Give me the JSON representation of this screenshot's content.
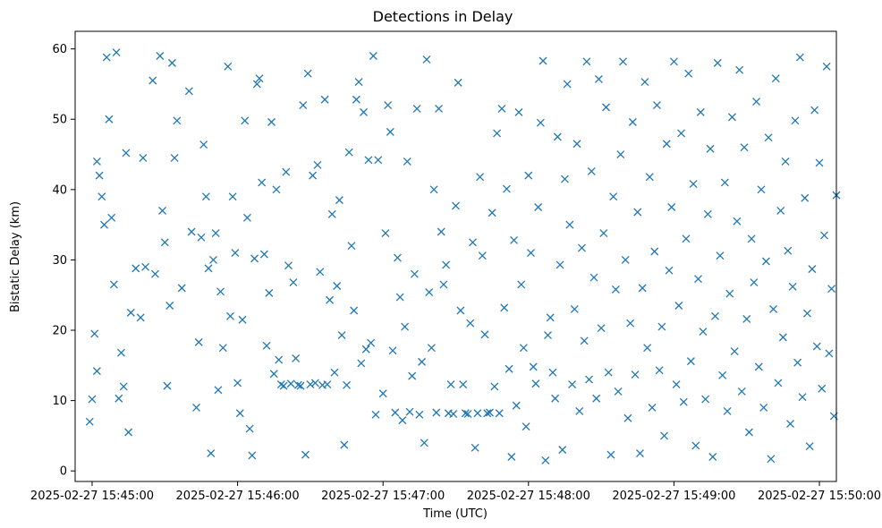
{
  "chart_data": {
    "type": "scatter",
    "title": "Detections in Delay",
    "xlabel": "Time (UTC)",
    "ylabel": "Bistatic Delay (km)",
    "xlim": [
      "2025-02-27 15:44:53",
      "2025-02-27 15:50:07"
    ],
    "ylim": [
      -1.5,
      62.5
    ],
    "x_ticks": [
      "2025-02-27 15:45:00",
      "2025-02-27 15:46:00",
      "2025-02-27 15:47:00",
      "2025-02-27 15:48:00",
      "2025-02-27 15:49:00",
      "2025-02-27 15:50:00"
    ],
    "y_ticks": [
      0,
      10,
      20,
      30,
      40,
      50,
      60
    ],
    "grid": false,
    "marker": "x",
    "color": "#1f77b4",
    "series": [
      {
        "x_unit": "seconds after 2025-02-27 15:45:00",
        "points": [
          [
            -1,
            7
          ],
          [
            0,
            10.2
          ],
          [
            1,
            19.5
          ],
          [
            2,
            44
          ],
          [
            2,
            14.2
          ],
          [
            3,
            42
          ],
          [
            4,
            39
          ],
          [
            5,
            35
          ],
          [
            6,
            58.8
          ],
          [
            7,
            50
          ],
          [
            8,
            36
          ],
          [
            9,
            26.5
          ],
          [
            10,
            59.5
          ],
          [
            11,
            10.3
          ],
          [
            12,
            16.8
          ],
          [
            13,
            12
          ],
          [
            14,
            45.2
          ],
          [
            15,
            5.5
          ],
          [
            16,
            22.5
          ],
          [
            18,
            28.8
          ],
          [
            20,
            21.8
          ],
          [
            21,
            44.5
          ],
          [
            22,
            29
          ],
          [
            25,
            55.5
          ],
          [
            26,
            28
          ],
          [
            28,
            59
          ],
          [
            29,
            37
          ],
          [
            30,
            32.5
          ],
          [
            31,
            12.1
          ],
          [
            32,
            23.5
          ],
          [
            33,
            58
          ],
          [
            34,
            44.5
          ],
          [
            35,
            49.8
          ],
          [
            37,
            26
          ],
          [
            40,
            54
          ],
          [
            41,
            34
          ],
          [
            43,
            9
          ],
          [
            44,
            18.3
          ],
          [
            45,
            33.2
          ],
          [
            46,
            46.4
          ],
          [
            47,
            39
          ],
          [
            48,
            28.8
          ],
          [
            49,
            2.5
          ],
          [
            50,
            30
          ],
          [
            51,
            33.8
          ],
          [
            52,
            11.5
          ],
          [
            53,
            25.5
          ],
          [
            54,
            17.5
          ],
          [
            56,
            57.5
          ],
          [
            57,
            22
          ],
          [
            58,
            39
          ],
          [
            59,
            31
          ],
          [
            60,
            12.5
          ],
          [
            61,
            8.2
          ],
          [
            62,
            21.5
          ],
          [
            63,
            49.8
          ],
          [
            64,
            36
          ],
          [
            65,
            6
          ],
          [
            66,
            2.2
          ],
          [
            67,
            30.2
          ],
          [
            68,
            55
          ],
          [
            69,
            55.8
          ],
          [
            70,
            41
          ],
          [
            71,
            30.8
          ],
          [
            72,
            17.8
          ],
          [
            73,
            25.3
          ],
          [
            74,
            49.6
          ],
          [
            75,
            13.8
          ],
          [
            76,
            40
          ],
          [
            77,
            15.8
          ],
          [
            78,
            12.3
          ],
          [
            79,
            12.1
          ],
          [
            80,
            42.5
          ],
          [
            81,
            29.2
          ],
          [
            82,
            12.4
          ],
          [
            83,
            26.8
          ],
          [
            84,
            16
          ],
          [
            85,
            12.2
          ],
          [
            86,
            12.1
          ],
          [
            87,
            52
          ],
          [
            88,
            2.3
          ],
          [
            89,
            56.5
          ],
          [
            90,
            12.3
          ],
          [
            91,
            42
          ],
          [
            92,
            12.5
          ],
          [
            93,
            43.5
          ],
          [
            94,
            28.3
          ],
          [
            95,
            12.2
          ],
          [
            96,
            52.8
          ],
          [
            97,
            12.3
          ],
          [
            98,
            24.3
          ],
          [
            99,
            36.5
          ],
          [
            100,
            14
          ],
          [
            101,
            26.3
          ],
          [
            102,
            38.5
          ],
          [
            103,
            19.3
          ],
          [
            104,
            3.7
          ],
          [
            105,
            12.2
          ],
          [
            106,
            45.3
          ],
          [
            107,
            32
          ],
          [
            108,
            22.8
          ],
          [
            109,
            52.8
          ],
          [
            110,
            55.3
          ],
          [
            111,
            15.3
          ],
          [
            112,
            51
          ],
          [
            113,
            17.3
          ],
          [
            114,
            44.2
          ],
          [
            115,
            18.2
          ],
          [
            116,
            59
          ],
          [
            117,
            8
          ],
          [
            118,
            44.2
          ],
          [
            120,
            11
          ],
          [
            121,
            33.8
          ],
          [
            122,
            52
          ],
          [
            123,
            48.2
          ],
          [
            124,
            17.1
          ],
          [
            125,
            8.3
          ],
          [
            126,
            30.3
          ],
          [
            127,
            24.7
          ],
          [
            128,
            7.2
          ],
          [
            129,
            20.5
          ],
          [
            130,
            44
          ],
          [
            131,
            8.4
          ],
          [
            132,
            13.5
          ],
          [
            133,
            28
          ],
          [
            134,
            51.5
          ],
          [
            135,
            8
          ],
          [
            136,
            15.5
          ],
          [
            137,
            4
          ],
          [
            138,
            58.5
          ],
          [
            139,
            25.4
          ],
          [
            140,
            17.5
          ],
          [
            141,
            40
          ],
          [
            142,
            8.3
          ],
          [
            143,
            51.5
          ],
          [
            144,
            34
          ],
          [
            145,
            26.5
          ],
          [
            146,
            29.3
          ],
          [
            147,
            8.2
          ],
          [
            148,
            12.3
          ],
          [
            149,
            8.1
          ],
          [
            150,
            37.7
          ],
          [
            151,
            55.2
          ],
          [
            152,
            22.8
          ],
          [
            153,
            12.3
          ],
          [
            154,
            8.2
          ],
          [
            155,
            8.1
          ],
          [
            156,
            21
          ],
          [
            157,
            32.5
          ],
          [
            158,
            3.3
          ],
          [
            159,
            8.2
          ],
          [
            160,
            41.8
          ],
          [
            161,
            30.6
          ],
          [
            162,
            19.4
          ],
          [
            163,
            8.2
          ],
          [
            164,
            8.3
          ],
          [
            165,
            36.7
          ],
          [
            166,
            12
          ],
          [
            167,
            48
          ],
          [
            168,
            8.2
          ],
          [
            169,
            51.5
          ],
          [
            170,
            23.2
          ],
          [
            171,
            40.1
          ],
          [
            172,
            14.5
          ],
          [
            173,
            2
          ],
          [
            174,
            32.8
          ],
          [
            175,
            9.3
          ],
          [
            176,
            51
          ],
          [
            177,
            26.5
          ],
          [
            178,
            17.5
          ],
          [
            179,
            6.3
          ],
          [
            180,
            42
          ],
          [
            181,
            31
          ],
          [
            182,
            14.8
          ],
          [
            183,
            12.4
          ],
          [
            184,
            37.5
          ],
          [
            185,
            49.5
          ],
          [
            186,
            58.3
          ],
          [
            187,
            1.5
          ],
          [
            188,
            19.3
          ],
          [
            189,
            21.8
          ],
          [
            190,
            14
          ],
          [
            191,
            10.3
          ],
          [
            192,
            47.5
          ],
          [
            193,
            29.3
          ],
          [
            194,
            3
          ],
          [
            195,
            41.5
          ],
          [
            196,
            55
          ],
          [
            197,
            35
          ],
          [
            198,
            12.3
          ],
          [
            199,
            23
          ],
          [
            200,
            46.5
          ],
          [
            201,
            8.5
          ],
          [
            202,
            31.7
          ],
          [
            203,
            18.5
          ],
          [
            204,
            58.2
          ],
          [
            205,
            13
          ],
          [
            206,
            42.6
          ],
          [
            207,
            27.5
          ],
          [
            208,
            10.3
          ],
          [
            209,
            55.7
          ],
          [
            210,
            20.3
          ],
          [
            211,
            33.8
          ],
          [
            212,
            51.7
          ],
          [
            213,
            14
          ],
          [
            214,
            2.3
          ],
          [
            215,
            39
          ],
          [
            216,
            25.8
          ],
          [
            217,
            11.3
          ],
          [
            218,
            45
          ],
          [
            219,
            58.2
          ],
          [
            220,
            30
          ],
          [
            221,
            7.5
          ],
          [
            222,
            21
          ],
          [
            223,
            49.6
          ],
          [
            224,
            13.7
          ],
          [
            225,
            36.8
          ],
          [
            226,
            2.5
          ],
          [
            227,
            26
          ],
          [
            228,
            55.3
          ],
          [
            229,
            17.5
          ],
          [
            230,
            41.8
          ],
          [
            231,
            9
          ],
          [
            232,
            31.2
          ],
          [
            233,
            52
          ],
          [
            234,
            14.3
          ],
          [
            235,
            20.5
          ],
          [
            236,
            5
          ],
          [
            237,
            46.5
          ],
          [
            238,
            28.5
          ],
          [
            239,
            37.5
          ],
          [
            240,
            58.2
          ],
          [
            241,
            12.3
          ],
          [
            242,
            23.5
          ],
          [
            243,
            48
          ],
          [
            244,
            9.8
          ],
          [
            245,
            33
          ],
          [
            246,
            56.5
          ],
          [
            247,
            15.6
          ],
          [
            248,
            40.8
          ],
          [
            249,
            3.6
          ],
          [
            250,
            27.3
          ],
          [
            251,
            51
          ],
          [
            252,
            19.8
          ],
          [
            253,
            10.2
          ],
          [
            254,
            36.5
          ],
          [
            255,
            45.8
          ],
          [
            256,
            2
          ],
          [
            257,
            22
          ],
          [
            258,
            58
          ],
          [
            259,
            30.6
          ],
          [
            260,
            13.6
          ],
          [
            261,
            41
          ],
          [
            262,
            8.5
          ],
          [
            263,
            25.2
          ],
          [
            264,
            50.3
          ],
          [
            265,
            17
          ],
          [
            266,
            35.5
          ],
          [
            267,
            57
          ],
          [
            268,
            11.3
          ],
          [
            269,
            46
          ],
          [
            270,
            21.6
          ],
          [
            271,
            5.5
          ],
          [
            272,
            33
          ],
          [
            273,
            26.8
          ],
          [
            274,
            52.5
          ],
          [
            275,
            14.8
          ],
          [
            276,
            40
          ],
          [
            277,
            9
          ],
          [
            278,
            29.8
          ],
          [
            279,
            47.4
          ],
          [
            280,
            1.7
          ],
          [
            281,
            23
          ],
          [
            282,
            55.8
          ],
          [
            283,
            12.5
          ],
          [
            284,
            37
          ],
          [
            285,
            19
          ],
          [
            286,
            44
          ],
          [
            287,
            31.3
          ],
          [
            288,
            6.7
          ],
          [
            289,
            26.2
          ],
          [
            290,
            49.8
          ],
          [
            291,
            15.4
          ],
          [
            292,
            58.8
          ],
          [
            293,
            10.5
          ],
          [
            294,
            38.8
          ],
          [
            295,
            22.4
          ],
          [
            296,
            3.5
          ],
          [
            297,
            28.7
          ],
          [
            298,
            51.3
          ],
          [
            299,
            17.7
          ],
          [
            300,
            43.8
          ],
          [
            301,
            11.7
          ],
          [
            302,
            33.5
          ],
          [
            303,
            57.5
          ],
          [
            304,
            16.7
          ],
          [
            305,
            25.9
          ],
          [
            306,
            7.8
          ],
          [
            307,
            39.2
          ]
        ]
      }
    ]
  }
}
